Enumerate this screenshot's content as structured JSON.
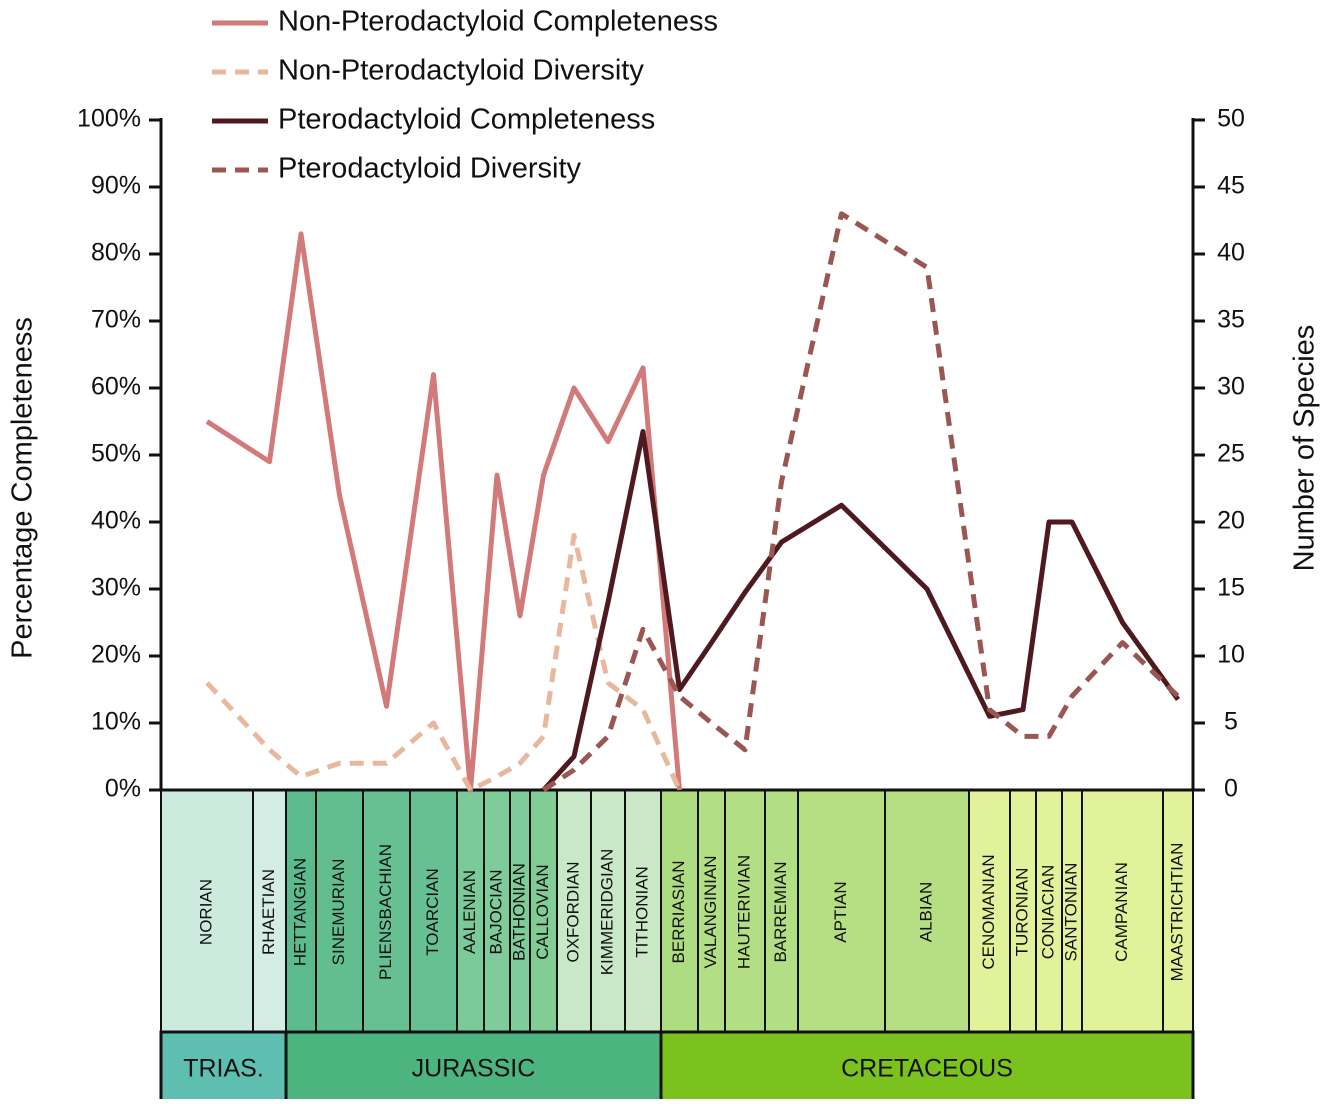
{
  "chart_data": {
    "type": "line",
    "categories": [
      "NORIAN",
      "RHAETIAN",
      "HETTANGIAN",
      "SINEMURIAN",
      "PLIENSBACHIAN",
      "TOARCIAN",
      "AALENIAN",
      "BAJOCIAN",
      "BATHONIAN",
      "CALLOVIAN",
      "OXFORDIAN",
      "KIMMERIDGIAN",
      "TITHONIAN",
      "BERRIASIAN",
      "VALANGINIAN",
      "HAUTERIVIAN",
      "BARREMIAN",
      "APTIAN",
      "ALBIAN",
      "CENOMANIAN",
      "TURONIAN",
      "CONIACIAN",
      "SANTONIAN",
      "CAMPANIAN",
      "MAASTRICHTIAN"
    ],
    "periods": [
      "TRIAS.",
      "JURASSIC",
      "CRETACEOUS"
    ],
    "series": [
      {
        "name": "Non-Pterodactyloid Completeness",
        "color": "#d27a7a",
        "dash": false,
        "values": [
          55,
          49,
          83,
          44,
          12.5,
          62,
          0,
          47,
          26,
          47,
          60,
          52,
          63,
          0,
          null,
          null,
          null,
          null,
          null,
          null,
          null,
          null,
          null,
          null,
          null
        ]
      },
      {
        "name": "Non-Pterodactyloid Diversity",
        "color": "#e8b89e",
        "dash": true,
        "axis": "y2",
        "values": [
          8,
          3,
          1,
          2,
          2,
          5,
          0,
          1,
          2,
          4,
          19,
          8,
          6,
          0,
          null,
          null,
          null,
          null,
          null,
          null,
          null,
          null,
          null,
          null,
          null
        ]
      },
      {
        "name": "Pterodactyloid Completeness",
        "color": "#4e1a1f",
        "dash": false,
        "values": [
          null,
          null,
          null,
          null,
          null,
          null,
          null,
          null,
          null,
          0,
          5,
          28,
          53.5,
          15,
          22,
          29.5,
          37,
          42.5,
          30,
          11,
          12,
          40,
          40,
          25,
          13.5
        ]
      },
      {
        "name": "Pterodactyloid Diversity",
        "color": "#9a5650",
        "dash": true,
        "axis": "y2",
        "values": [
          null,
          null,
          null,
          null,
          null,
          null,
          null,
          null,
          null,
          0,
          1.5,
          4,
          12,
          7,
          5,
          3,
          23,
          43,
          39,
          6,
          4,
          4,
          7,
          11,
          7
        ]
      }
    ],
    "ylabel": "Percentage Completeness",
    "y2label": "Number of Species",
    "ylim": [
      0,
      100
    ],
    "yticks": [
      {
        "value": 0,
        "label": "0%"
      },
      {
        "value": 10,
        "label": "10%"
      },
      {
        "value": 20,
        "label": "20%"
      },
      {
        "value": 30,
        "label": "30%"
      },
      {
        "value": 40,
        "label": "40%"
      },
      {
        "value": 50,
        "label": "50%"
      },
      {
        "value": 60,
        "label": "60%"
      },
      {
        "value": 70,
        "label": "70%"
      },
      {
        "value": 80,
        "label": "80%"
      },
      {
        "value": 90,
        "label": "90%"
      },
      {
        "value": 100,
        "label": "100%"
      }
    ],
    "y2lim": [
      0,
      50
    ],
    "y2ticks": [
      0,
      5,
      10,
      15,
      20,
      25,
      30,
      35,
      40,
      45,
      50
    ]
  }
}
